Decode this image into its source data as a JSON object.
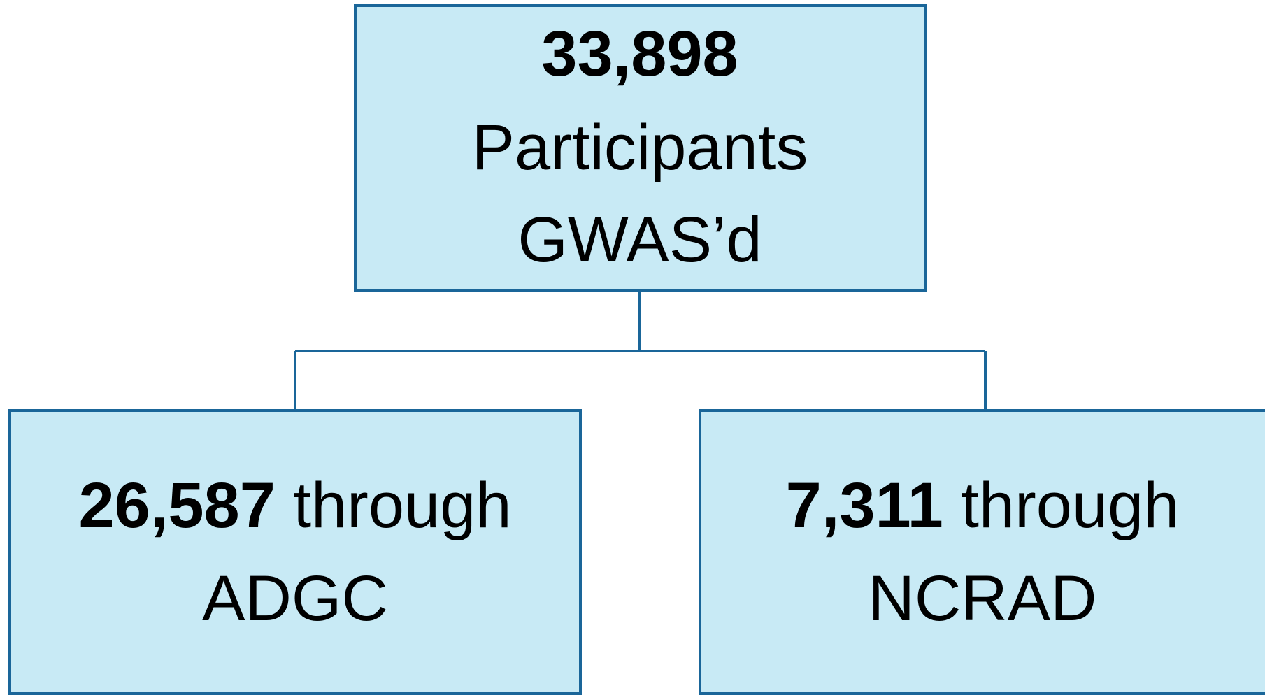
{
  "nodes": [
    {
      "count": "33,898",
      "lines": [
        "Participants",
        "GWAS’d"
      ]
    },
    {
      "count": "26,587",
      "text": "through",
      "label": "ADGC"
    },
    {
      "count": "7,311",
      "text": "through",
      "label": "NCRAD"
    }
  ]
}
